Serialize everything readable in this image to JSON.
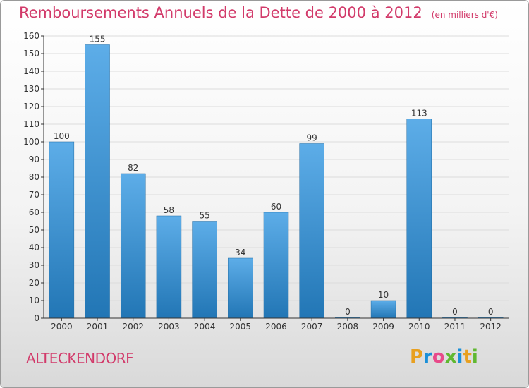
{
  "header": {
    "title": "Remboursements Annuels de la Dette de 2000 à 2012",
    "unit": "(en milliers d'€)"
  },
  "footer": {
    "commune": "ALTECKENDORF",
    "brand": "Proxiti",
    "brand_colors": [
      "#e8a020",
      "#1a8fd8",
      "#e84a8a",
      "#60b830",
      "#1a8fd8",
      "#e8a020",
      "#60b830"
    ]
  },
  "colors": {
    "title": "#d23a6a",
    "bar_top": "#5dade8",
    "bar_bottom": "#2276b5",
    "grid": "#dcdcdc",
    "axis": "#333333"
  },
  "chart_data": {
    "type": "bar",
    "title": "Remboursements Annuels de la Dette de 2000 à 2012",
    "ylabel": "",
    "xlabel": "",
    "categories": [
      "2000",
      "2001",
      "2002",
      "2003",
      "2004",
      "2005",
      "2006",
      "2007",
      "2008",
      "2009",
      "2010",
      "2011",
      "2012"
    ],
    "values": [
      100,
      155,
      82,
      58,
      55,
      34,
      60,
      99,
      0,
      10,
      113,
      0,
      0
    ],
    "ylim": [
      0,
      160
    ],
    "yticks": [
      0,
      10,
      20,
      30,
      40,
      50,
      60,
      70,
      80,
      90,
      100,
      110,
      120,
      130,
      140,
      150,
      160
    ],
    "grid": true
  }
}
